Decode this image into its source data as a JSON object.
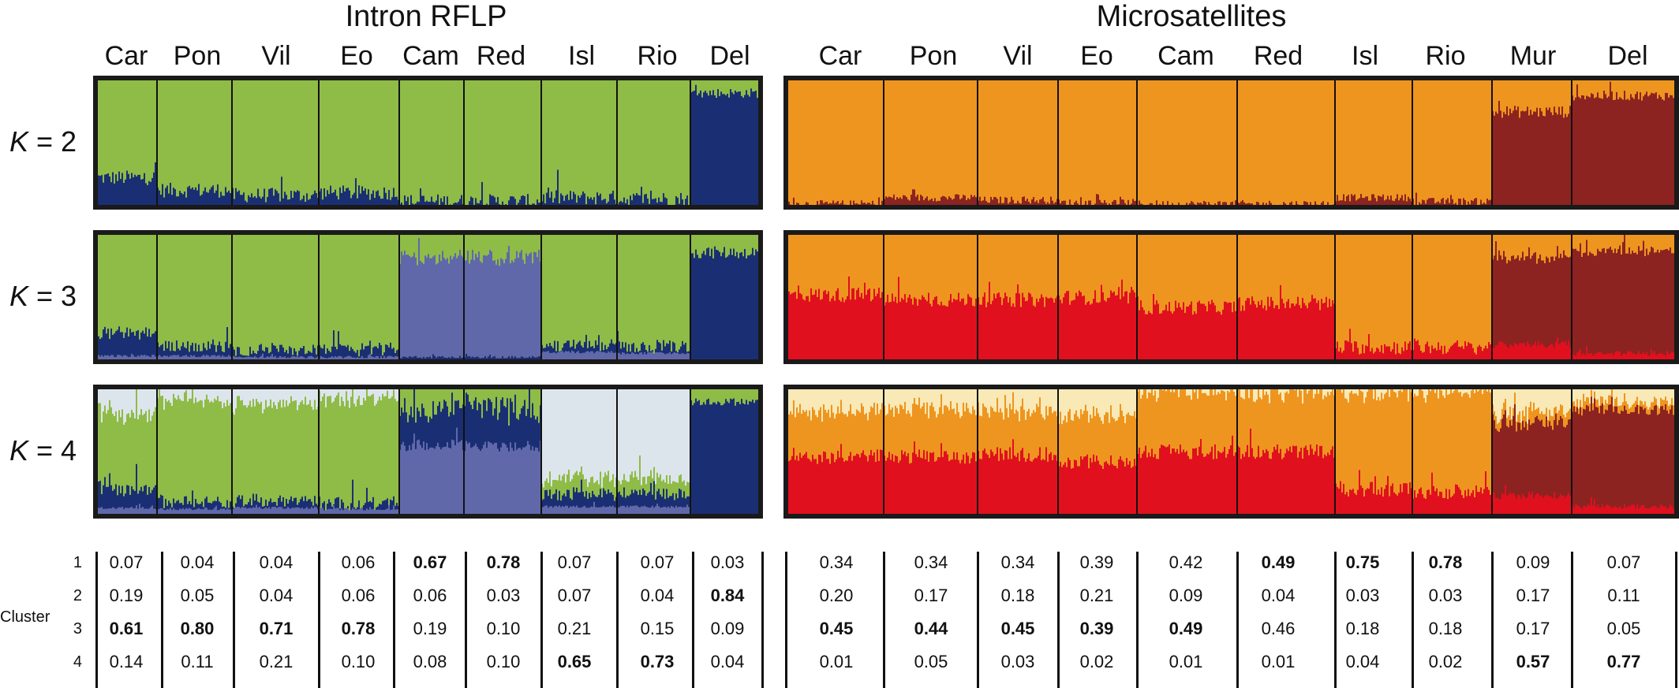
{
  "colors": {
    "intron": [
      "#6068aa",
      "#1a2f73",
      "#8fbb47",
      "#dde5ec"
    ],
    "micro": [
      "#ee9520",
      "#8c2320",
      "#e0101f",
      "#f8e9b6"
    ]
  },
  "chart_data": [
    {
      "type": "bar",
      "title": "Intron RFLP",
      "populations": [
        "Car",
        "Pon",
        "Vil",
        "Eo",
        "Cam",
        "Red",
        "Isl",
        "Rio",
        "Del"
      ],
      "k_labels": [
        "2",
        "3",
        "4"
      ],
      "cluster_label": "Cluster",
      "cluster_ids": [
        "1",
        "2",
        "3",
        "4"
      ],
      "membership": [
        [
          "0.07",
          "0.04",
          "0.04",
          "0.06",
          "0.67",
          "0.78",
          "0.07",
          "0.07",
          "0.03"
        ],
        [
          "0.19",
          "0.05",
          "0.04",
          "0.06",
          "0.06",
          "0.03",
          "0.07",
          "0.04",
          "0.84"
        ],
        [
          "0.61",
          "0.80",
          "0.71",
          "0.78",
          "0.19",
          "0.10",
          "0.21",
          "0.15",
          "0.09"
        ],
        [
          "0.14",
          "0.11",
          "0.21",
          "0.10",
          "0.08",
          "0.10",
          "0.65",
          "0.73",
          "0.04"
        ]
      ],
      "bold": [
        [
          0,
          0,
          0,
          0,
          1,
          1,
          0,
          0,
          0
        ],
        [
          0,
          0,
          0,
          0,
          0,
          0,
          0,
          0,
          1
        ],
        [
          1,
          1,
          1,
          1,
          0,
          0,
          0,
          0,
          0
        ],
        [
          0,
          0,
          0,
          0,
          0,
          0,
          1,
          1,
          0
        ]
      ]
    },
    {
      "type": "bar",
      "title": "Microsatellites",
      "populations": [
        "Car",
        "Pon",
        "Vil",
        "Eo",
        "Cam",
        "Red",
        "Isl",
        "Rio",
        "Mur",
        "Del"
      ],
      "membership": [
        [
          "0.34",
          "0.34",
          "0.34",
          "0.39",
          "0.42",
          "0.49",
          "0.75",
          "0.78",
          "0.09",
          "0.07"
        ],
        [
          "0.20",
          "0.17",
          "0.18",
          "0.21",
          "0.09",
          "0.04",
          "0.03",
          "0.03",
          "0.17",
          "0.11"
        ],
        [
          "0.45",
          "0.44",
          "0.45",
          "0.39",
          "0.49",
          "0.46",
          "0.18",
          "0.18",
          "0.17",
          "0.05"
        ],
        [
          "0.01",
          "0.05",
          "0.03",
          "0.02",
          "0.01",
          "0.01",
          "0.04",
          "0.02",
          "0.57",
          "0.77"
        ]
      ],
      "bold": [
        [
          0,
          0,
          0,
          0,
          0,
          1,
          1,
          1,
          0,
          0
        ],
        [
          0,
          0,
          0,
          0,
          0,
          0,
          0,
          0,
          0,
          0
        ],
        [
          1,
          1,
          1,
          1,
          1,
          0,
          0,
          0,
          0,
          0
        ],
        [
          0,
          0,
          0,
          0,
          0,
          0,
          0,
          0,
          1,
          1
        ]
      ]
    }
  ]
}
